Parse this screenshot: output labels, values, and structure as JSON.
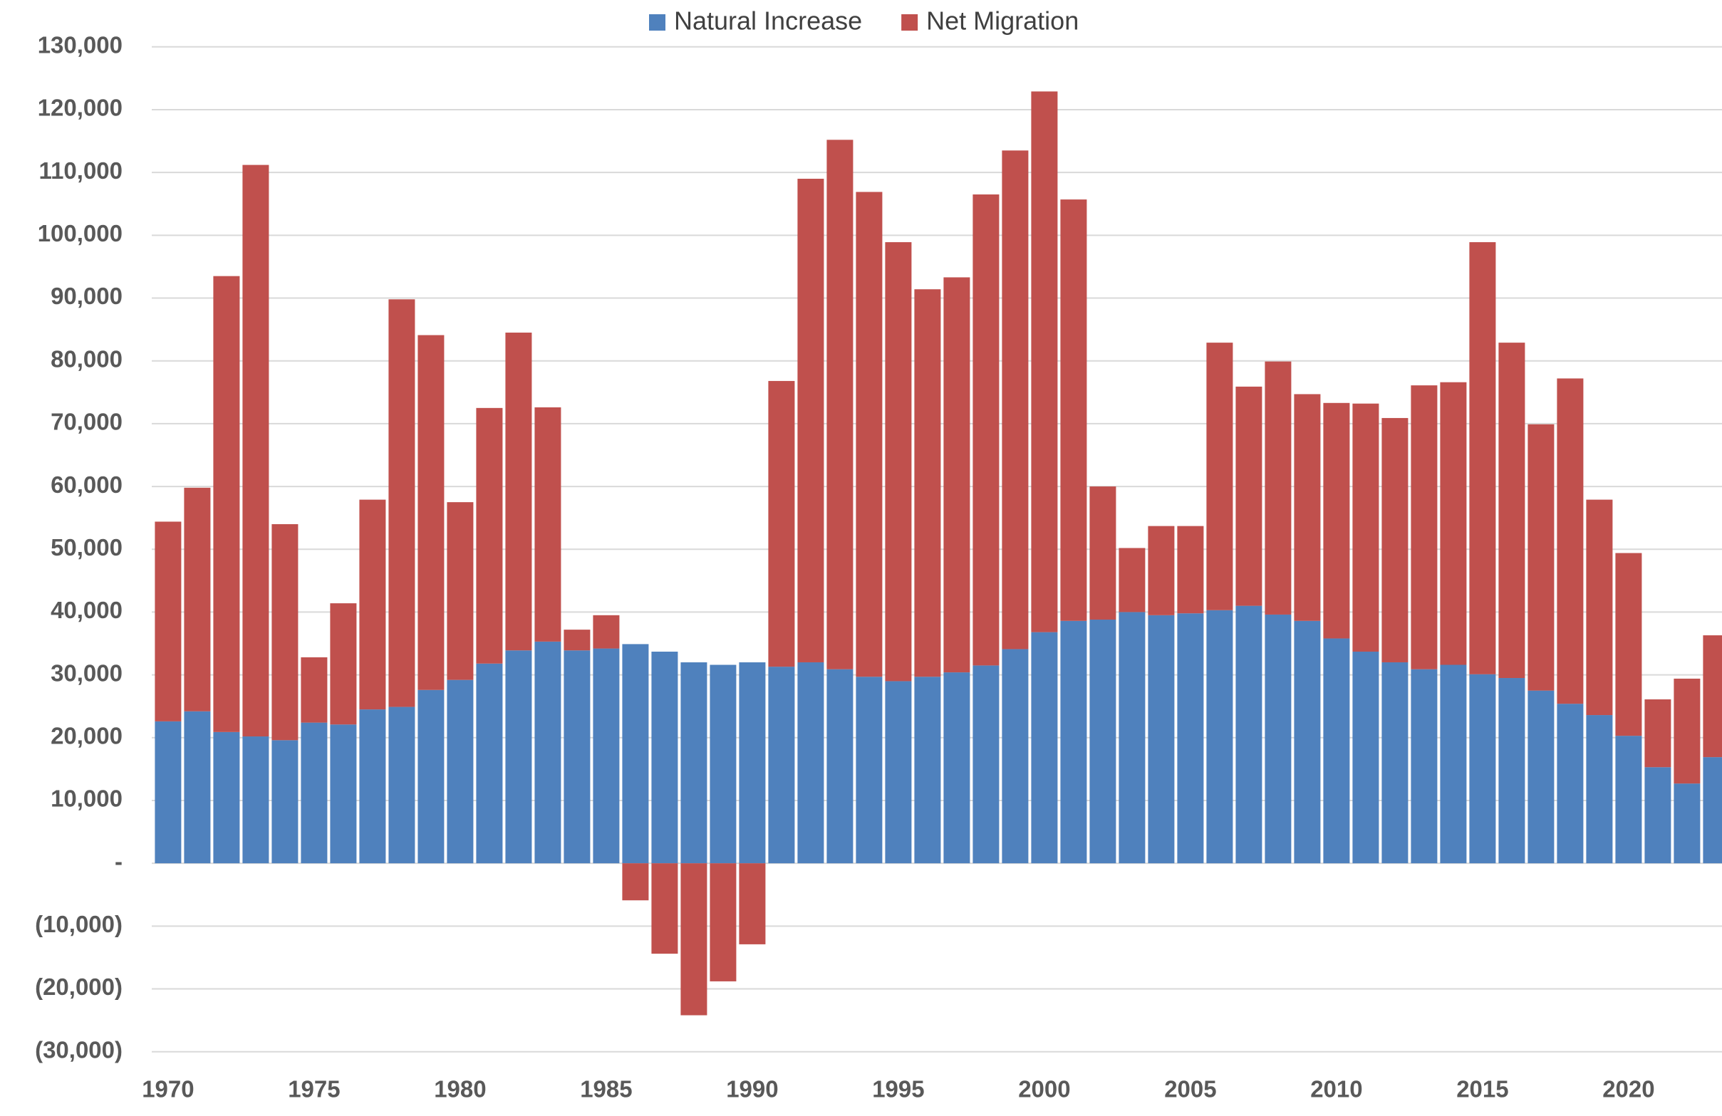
{
  "chart_data": {
    "type": "bar",
    "stacked": true,
    "categories": [
      "1970",
      null,
      null,
      null,
      null,
      "1975",
      null,
      null,
      null,
      null,
      "1980",
      null,
      null,
      null,
      null,
      "1985",
      null,
      null,
      null,
      null,
      "1990",
      null,
      null,
      null,
      null,
      "1995",
      null,
      null,
      null,
      null,
      "2000",
      null,
      null,
      null,
      null,
      "2005",
      null,
      null,
      null,
      null,
      "2010",
      null,
      null,
      null,
      null,
      "2015",
      null,
      null,
      null,
      null,
      "2020",
      null,
      null,
      null
    ],
    "series": [
      {
        "name": "Natural Increase",
        "color": "#4f81bd",
        "values": [
          22600,
          24200,
          20900,
          20200,
          19600,
          22400,
          22100,
          24500,
          24900,
          27600,
          29200,
          31800,
          33900,
          35300,
          33900,
          34200,
          34900,
          33700,
          32000,
          31600,
          32000,
          31300,
          32000,
          30900,
          29700,
          29000,
          29700,
          30400,
          31500,
          34100,
          36800,
          38600,
          38800,
          40000,
          39500,
          39800,
          40300,
          41000,
          39600,
          38600,
          35800,
          33700,
          32000,
          30900,
          31600,
          30100,
          29500,
          27500,
          25400,
          23600,
          20300,
          15300,
          12700,
          16900
        ]
      },
      {
        "name": "Net Migration",
        "color": "#c0504d",
        "values": [
          31800,
          35600,
          72600,
          91000,
          34400,
          10400,
          19300,
          33400,
          64900,
          56500,
          28300,
          40700,
          50600,
          37300,
          3300,
          5300,
          -5900,
          -14400,
          -24200,
          -18800,
          -12900,
          45500,
          77000,
          84300,
          77200,
          69900,
          61700,
          62900,
          75000,
          79400,
          86100,
          67100,
          21200,
          10200,
          14200,
          13900,
          42600,
          34900,
          40300,
          36100,
          37500,
          39500,
          38900,
          45200,
          45000,
          68800,
          53400,
          42400,
          51800,
          34300,
          29100,
          10800,
          16700,
          19400
        ]
      }
    ],
    "ylim": [
      -30000,
      130000
    ],
    "yticks": [
      {
        "value": -30000,
        "label": "(30,000)"
      },
      {
        "value": -20000,
        "label": "(20,000)"
      },
      {
        "value": -10000,
        "label": "(10,000)"
      },
      {
        "value": 0,
        "label": "-"
      },
      {
        "value": 10000,
        "label": "10,000"
      },
      {
        "value": 20000,
        "label": "20,000"
      },
      {
        "value": 30000,
        "label": "30,000"
      },
      {
        "value": 40000,
        "label": "40,000"
      },
      {
        "value": 50000,
        "label": "50,000"
      },
      {
        "value": 60000,
        "label": "60,000"
      },
      {
        "value": 70000,
        "label": "70,000"
      },
      {
        "value": 80000,
        "label": "80,000"
      },
      {
        "value": 90000,
        "label": "90,000"
      },
      {
        "value": 100000,
        "label": "100,000"
      },
      {
        "value": 110000,
        "label": "110,000"
      },
      {
        "value": 120000,
        "label": "120,000"
      },
      {
        "value": 130000,
        "label": "130,000"
      }
    ],
    "grid": true,
    "legend": "top"
  }
}
